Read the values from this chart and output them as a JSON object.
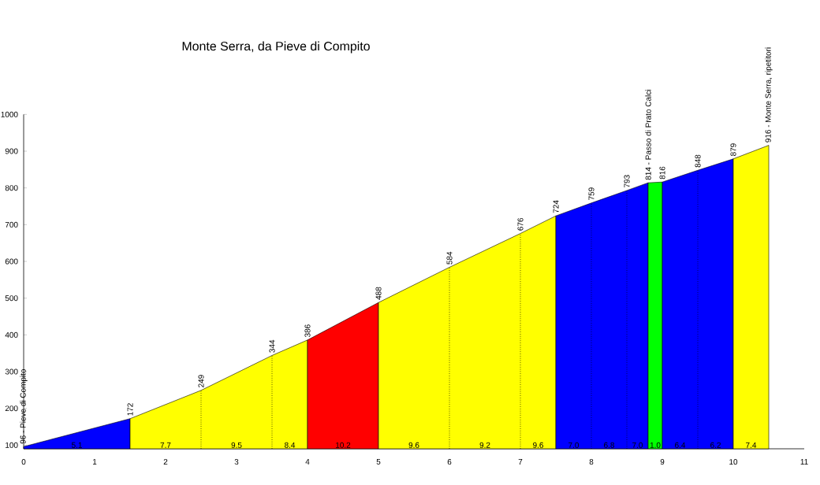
{
  "chart_data": {
    "type": "area",
    "title": "Monte Serra, da Pieve di Compito",
    "legend": false,
    "xlim": [
      0,
      11
    ],
    "xticks": [
      0,
      1,
      2,
      3,
      4,
      5,
      6,
      7,
      8,
      9,
      10,
      11
    ],
    "ylim": [
      90,
      1000
    ],
    "yticks": [
      100,
      200,
      300,
      400,
      500,
      600,
      700,
      800,
      900,
      1000
    ],
    "series": [
      {
        "color": "#0000ff",
        "x": [
          0,
          1.5
        ],
        "values": [
          96,
          172
        ],
        "value_labels": [
          "96 - Pieve di Compito",
          "172"
        ]
      },
      {
        "color": "#ffff00",
        "x": [
          1.5,
          2.5,
          3.5,
          4
        ],
        "values": [
          172,
          249,
          344,
          386
        ],
        "value_labels": [
          null,
          "249",
          "344",
          "386"
        ]
      },
      {
        "color": "#ff0000",
        "x": [
          4,
          5
        ],
        "values": [
          386,
          488
        ],
        "value_labels": [
          null,
          "488"
        ]
      },
      {
        "color": "#ffff00",
        "x": [
          5,
          6,
          7,
          7.5
        ],
        "values": [
          488,
          584,
          676,
          724
        ],
        "value_labels": [
          null,
          "584",
          "676",
          "724"
        ]
      },
      {
        "color": "#0000ff",
        "x": [
          7.5,
          8,
          8.5,
          8.8
        ],
        "values": [
          724,
          759,
          793,
          814
        ],
        "value_labels": [
          null,
          "759",
          "793",
          "814 - Passo di Prato Calci"
        ]
      },
      {
        "color": "#00ff00",
        "x": [
          8.8,
          9
        ],
        "values": [
          814,
          816
        ],
        "value_labels": [
          null,
          "816"
        ]
      },
      {
        "color": "#0000ff",
        "x": [
          9,
          9.5,
          10
        ],
        "values": [
          816,
          848,
          879
        ],
        "value_labels": [
          null,
          "848",
          "879"
        ]
      },
      {
        "color": "#ffff00",
        "x": [
          10,
          10.5
        ],
        "values": [
          879,
          916
        ],
        "value_labels": [
          null,
          "916 - Monte Serra, ripetitori"
        ]
      }
    ],
    "annotations": [
      {
        "text": "5.1",
        "x": 0.75,
        "y": 100
      },
      {
        "text": "7.7",
        "x": 2,
        "y": 100
      },
      {
        "text": "9.5",
        "x": 3,
        "y": 100
      },
      {
        "text": "8.4",
        "x": 3.75,
        "y": 100
      },
      {
        "text": "10.2",
        "x": 4.5,
        "y": 100
      },
      {
        "text": "9.6",
        "x": 5.5,
        "y": 100
      },
      {
        "text": "9.2",
        "x": 6.5,
        "y": 100
      },
      {
        "text": "9.6",
        "x": 7.25,
        "y": 100
      },
      {
        "text": "7.0",
        "x": 7.75,
        "y": 100
      },
      {
        "text": "6.8",
        "x": 8.25,
        "y": 100
      },
      {
        "text": "7.0",
        "x": 8.65,
        "y": 100
      },
      {
        "text": "1.0",
        "x": 8.9,
        "y": 100
      },
      {
        "text": "6.4",
        "x": 9.25,
        "y": 100
      },
      {
        "text": "6.2",
        "x": 9.75,
        "y": 100
      },
      {
        "text": "7.4",
        "x": 10.25,
        "y": 100
      }
    ]
  }
}
